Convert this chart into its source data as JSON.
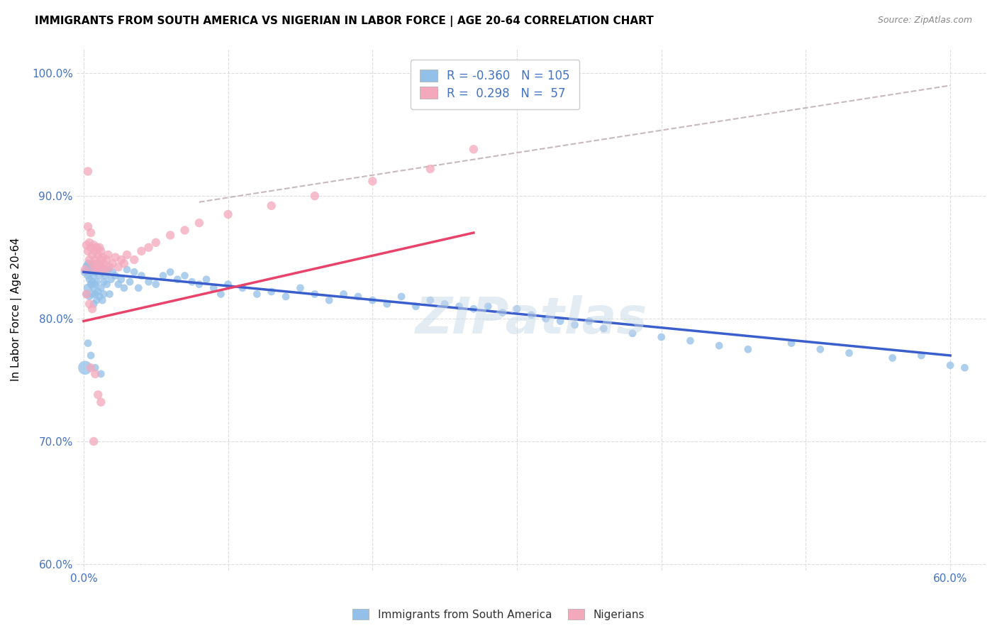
{
  "title": "IMMIGRANTS FROM SOUTH AMERICA VS NIGERIAN IN LABOR FORCE | AGE 20-64 CORRELATION CHART",
  "source": "Source: ZipAtlas.com",
  "ylabel": "In Labor Force | Age 20-64",
  "xlim": [
    -0.005,
    0.625
  ],
  "ylim": [
    0.595,
    1.02
  ],
  "xticks": [
    0.0,
    0.1,
    0.2,
    0.3,
    0.4,
    0.5,
    0.6
  ],
  "xtick_labels": [
    "0.0%",
    "",
    "",
    "",
    "",
    "",
    "60.0%"
  ],
  "yticks": [
    0.6,
    0.7,
    0.8,
    0.9,
    1.0
  ],
  "ytick_labels": [
    "60.0%",
    "70.0%",
    "80.0%",
    "90.0%",
    "100.0%"
  ],
  "blue_color": "#92C0E8",
  "pink_color": "#F4A8BC",
  "blue_line_color": "#3A5FCD",
  "pink_line_color": "#E8436A",
  "dashed_line_color": "#C8B8C0",
  "legend_R1": "-0.360",
  "legend_N1": "105",
  "legend_R2": "0.298",
  "legend_N2": "57",
  "legend_label1": "Immigrants from South America",
  "legend_label2": "Nigerians",
  "watermark": "ZIPatlas",
  "blue_trend_x": [
    0.0,
    0.6
  ],
  "blue_trend_y": [
    0.838,
    0.77
  ],
  "pink_trend_x": [
    0.0,
    0.27
  ],
  "pink_trend_y": [
    0.798,
    0.87
  ],
  "dashed_trend_x": [
    0.08,
    0.6
  ],
  "dashed_trend_y": [
    0.895,
    0.99
  ],
  "blue_scatter_x": [
    0.001,
    0.002,
    0.002,
    0.003,
    0.003,
    0.003,
    0.004,
    0.004,
    0.004,
    0.005,
    0.005,
    0.005,
    0.006,
    0.006,
    0.006,
    0.007,
    0.007,
    0.007,
    0.007,
    0.008,
    0.008,
    0.008,
    0.009,
    0.009,
    0.009,
    0.01,
    0.01,
    0.011,
    0.011,
    0.012,
    0.012,
    0.013,
    0.013,
    0.014,
    0.014,
    0.015,
    0.016,
    0.017,
    0.018,
    0.019,
    0.02,
    0.022,
    0.024,
    0.026,
    0.028,
    0.03,
    0.032,
    0.035,
    0.038,
    0.04,
    0.045,
    0.05,
    0.055,
    0.06,
    0.065,
    0.07,
    0.075,
    0.08,
    0.085,
    0.09,
    0.095,
    0.1,
    0.11,
    0.12,
    0.13,
    0.14,
    0.15,
    0.16,
    0.17,
    0.18,
    0.19,
    0.2,
    0.21,
    0.22,
    0.23,
    0.24,
    0.25,
    0.26,
    0.27,
    0.28,
    0.29,
    0.3,
    0.31,
    0.32,
    0.33,
    0.34,
    0.35,
    0.36,
    0.38,
    0.4,
    0.42,
    0.44,
    0.46,
    0.49,
    0.51,
    0.53,
    0.56,
    0.58,
    0.6,
    0.61,
    0.001,
    0.003,
    0.005,
    0.008,
    0.012
  ],
  "blue_scatter_y": [
    0.838,
    0.843,
    0.82,
    0.835,
    0.845,
    0.825,
    0.84,
    0.832,
    0.818,
    0.838,
    0.828,
    0.845,
    0.83,
    0.842,
    0.82,
    0.835,
    0.825,
    0.84,
    0.812,
    0.838,
    0.828,
    0.82,
    0.845,
    0.83,
    0.815,
    0.84,
    0.822,
    0.835,
    0.818,
    0.842,
    0.825,
    0.838,
    0.815,
    0.83,
    0.82,
    0.835,
    0.828,
    0.84,
    0.82,
    0.832,
    0.838,
    0.835,
    0.828,
    0.832,
    0.825,
    0.84,
    0.83,
    0.838,
    0.825,
    0.835,
    0.83,
    0.828,
    0.835,
    0.838,
    0.832,
    0.835,
    0.83,
    0.828,
    0.832,
    0.825,
    0.82,
    0.828,
    0.825,
    0.82,
    0.822,
    0.818,
    0.825,
    0.82,
    0.815,
    0.82,
    0.818,
    0.815,
    0.812,
    0.818,
    0.81,
    0.815,
    0.812,
    0.81,
    0.808,
    0.81,
    0.805,
    0.808,
    0.803,
    0.8,
    0.798,
    0.795,
    0.798,
    0.792,
    0.788,
    0.785,
    0.782,
    0.778,
    0.775,
    0.78,
    0.775,
    0.772,
    0.768,
    0.77,
    0.762,
    0.76,
    0.76,
    0.78,
    0.77,
    0.76,
    0.755
  ],
  "pink_scatter_x": [
    0.001,
    0.002,
    0.003,
    0.003,
    0.004,
    0.004,
    0.005,
    0.005,
    0.006,
    0.006,
    0.007,
    0.007,
    0.008,
    0.008,
    0.009,
    0.009,
    0.01,
    0.01,
    0.011,
    0.011,
    0.012,
    0.012,
    0.013,
    0.013,
    0.014,
    0.015,
    0.016,
    0.017,
    0.018,
    0.02,
    0.022,
    0.024,
    0.026,
    0.028,
    0.03,
    0.035,
    0.04,
    0.045,
    0.05,
    0.06,
    0.07,
    0.08,
    0.1,
    0.13,
    0.16,
    0.2,
    0.24,
    0.27,
    0.002,
    0.004,
    0.006,
    0.008,
    0.01,
    0.012,
    0.007,
    0.003,
    0.005
  ],
  "pink_scatter_y": [
    0.84,
    0.86,
    0.855,
    0.875,
    0.862,
    0.848,
    0.858,
    0.87,
    0.845,
    0.852,
    0.86,
    0.84,
    0.855,
    0.848,
    0.858,
    0.842,
    0.852,
    0.845,
    0.858,
    0.84,
    0.848,
    0.855,
    0.842,
    0.85,
    0.845,
    0.84,
    0.848,
    0.852,
    0.842,
    0.845,
    0.85,
    0.842,
    0.848,
    0.845,
    0.852,
    0.848,
    0.855,
    0.858,
    0.862,
    0.868,
    0.872,
    0.878,
    0.885,
    0.892,
    0.9,
    0.912,
    0.922,
    0.938,
    0.82,
    0.812,
    0.808,
    0.755,
    0.738,
    0.732,
    0.7,
    0.92,
    0.76
  ],
  "blue_sizes": [
    80,
    60,
    60,
    60,
    60,
    80,
    60,
    60,
    60,
    60,
    60,
    60,
    60,
    60,
    60,
    60,
    60,
    60,
    60,
    60,
    60,
    60,
    60,
    60,
    60,
    60,
    60,
    60,
    60,
    60,
    60,
    60,
    60,
    60,
    60,
    60,
    60,
    60,
    60,
    60,
    60,
    60,
    60,
    60,
    60,
    60,
    60,
    60,
    60,
    60,
    60,
    60,
    60,
    60,
    60,
    60,
    60,
    60,
    60,
    60,
    60,
    60,
    60,
    60,
    60,
    60,
    60,
    60,
    60,
    60,
    60,
    60,
    60,
    60,
    60,
    60,
    60,
    60,
    60,
    60,
    60,
    60,
    60,
    60,
    60,
    60,
    60,
    60,
    60,
    60,
    60,
    60,
    60,
    60,
    60,
    60,
    60,
    60,
    60,
    60,
    200,
    60,
    60,
    60,
    60
  ]
}
